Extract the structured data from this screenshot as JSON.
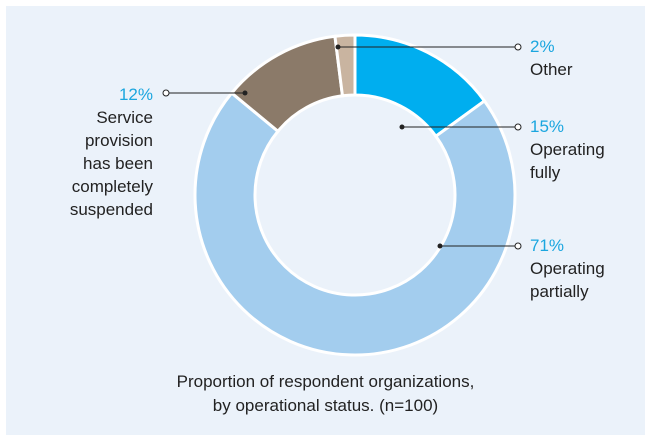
{
  "chart_data": {
    "type": "donut",
    "categories": [
      "Operating fully",
      "Operating partially",
      "Service provision has been completely suspended",
      "Other"
    ],
    "values": [
      15,
      71,
      12,
      2
    ],
    "value_labels": [
      "15%",
      "71%",
      "12%",
      "2%"
    ],
    "colors": [
      "#00aeef",
      "#a3cdee",
      "#8b7a69",
      "#c9b4a0"
    ],
    "caption": [
      "Proportion of respondent organizations,",
      "by operational status. (n=100)"
    ]
  }
}
